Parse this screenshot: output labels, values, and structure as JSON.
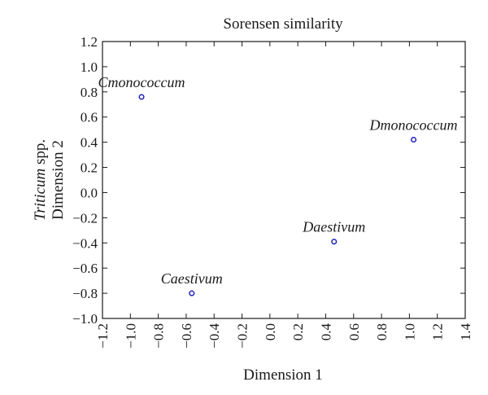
{
  "chart_data": {
    "type": "scatter",
    "title": "Sorensen similarity",
    "xlabel": "Dimension 1",
    "ylabel_species": "Triticum",
    "ylabel_suffix": " spp.",
    "ylabel_line2": "Dimension 2",
    "xlim": [
      -1.2,
      1.4
    ],
    "ylim": [
      -1.0,
      1.2
    ],
    "xticks": [
      "−1.2",
      "−1.0",
      "−0.8",
      "−0.6",
      "−0.4",
      "−0.2",
      "0.0",
      "0.2",
      "0.4",
      "0.6",
      "0.8",
      "1.0",
      "1.2",
      "1.4"
    ],
    "yticks": [
      "−1.0",
      "−0.8",
      "−0.6",
      "−0.4",
      "−0.2",
      "0.0",
      "0.2",
      "0.4",
      "0.6",
      "0.8",
      "1.0",
      "1.2"
    ],
    "grid": false,
    "marker_color": "#1f1fbf",
    "points": [
      {
        "label": "Cmonococcum",
        "x": -0.92,
        "y": 0.76
      },
      {
        "label": "Dmonococcum",
        "x": 1.03,
        "y": 0.42
      },
      {
        "label": "Daestivum",
        "x": 0.46,
        "y": -0.39
      },
      {
        "label": "Caestivum",
        "x": -0.56,
        "y": -0.8
      }
    ]
  }
}
